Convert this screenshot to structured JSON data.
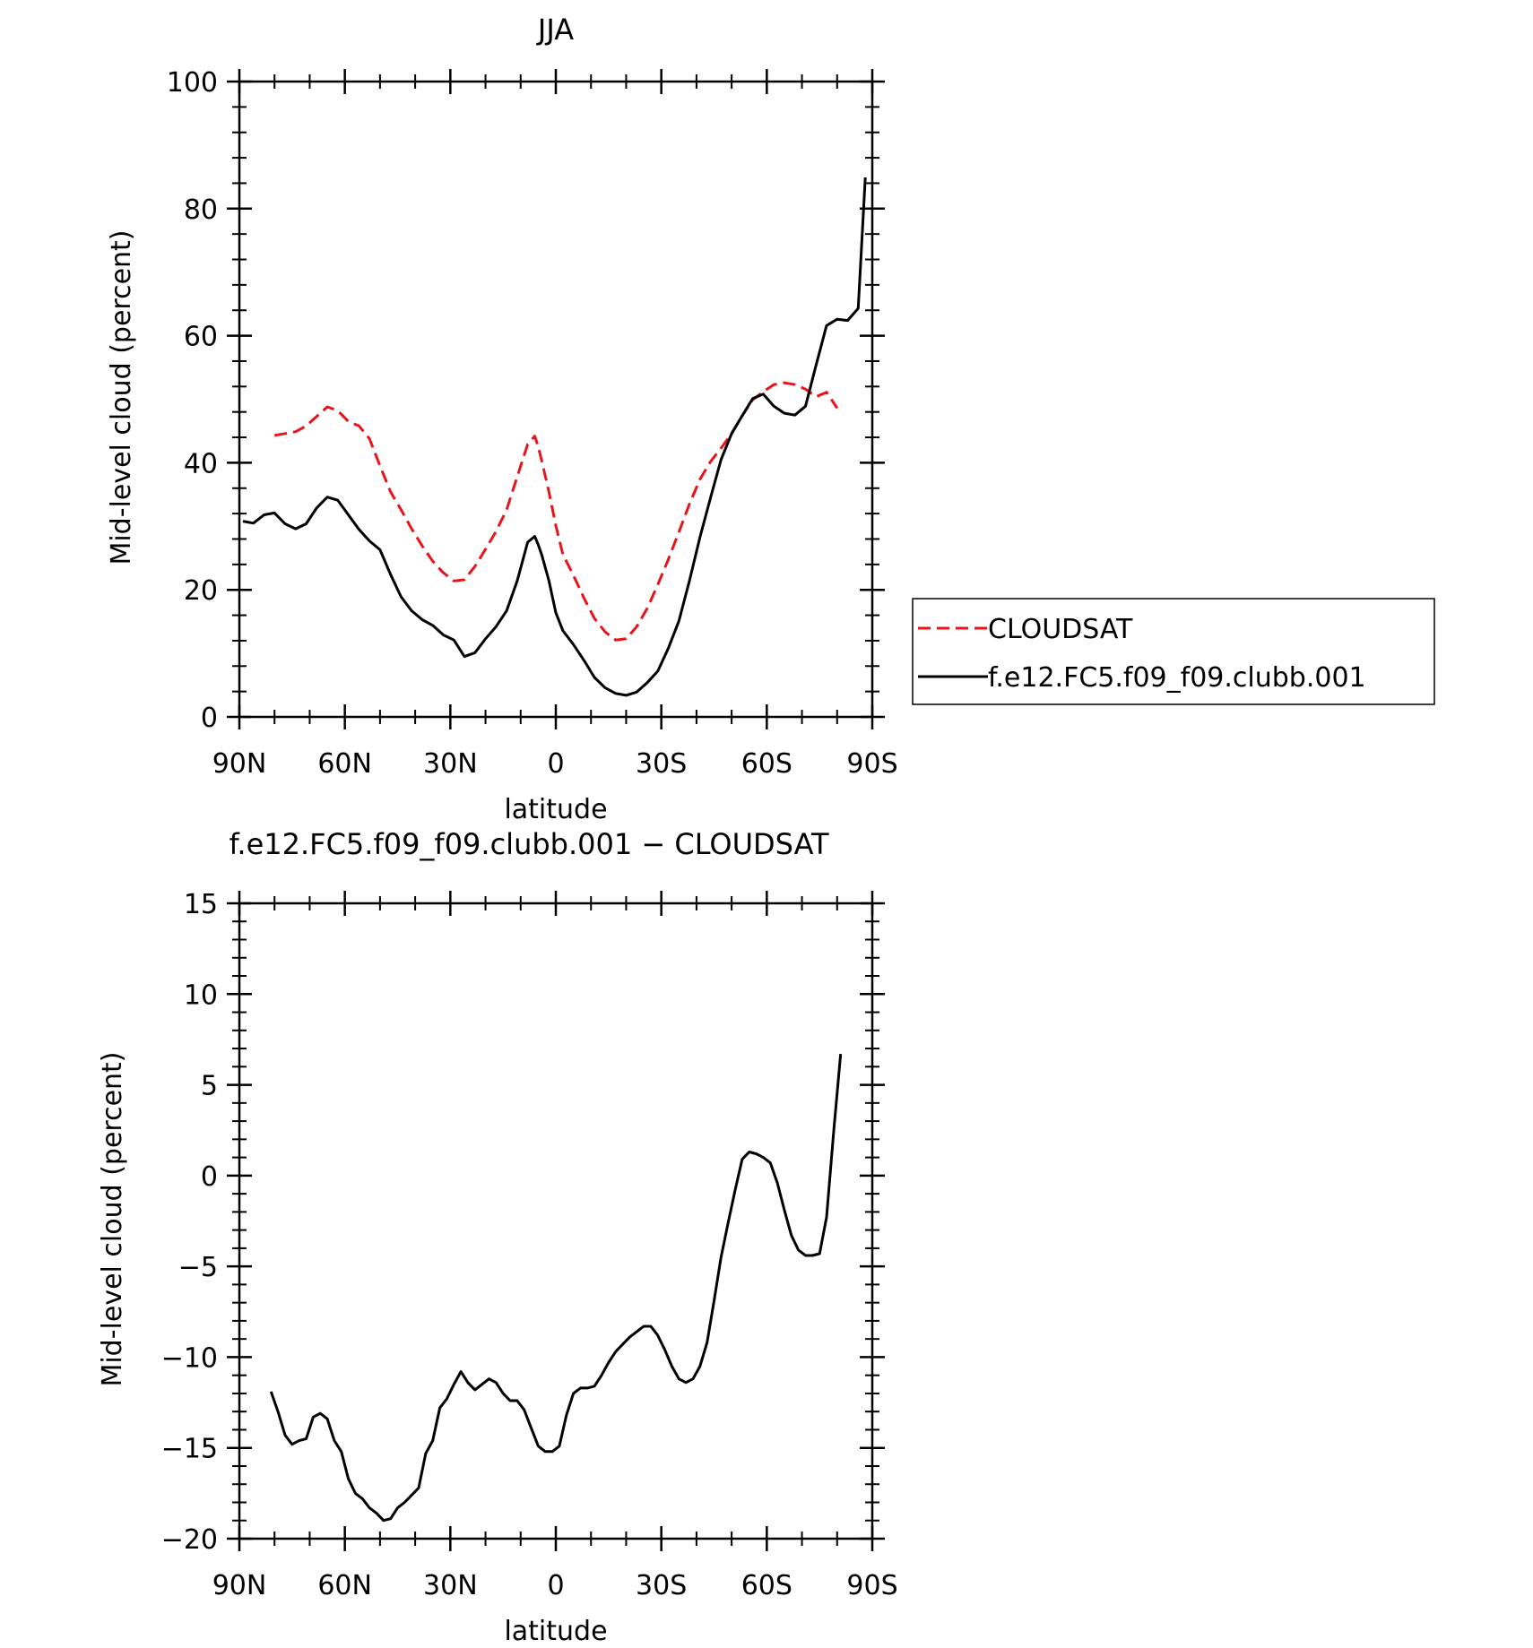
{
  "chart_data": [
    {
      "type": "line",
      "title": "JJA",
      "xlabel": "latitude",
      "ylabel": "Mid-level cloud (percent)",
      "xlim": [
        90,
        -90
      ],
      "ylim": [
        0,
        100
      ],
      "xticks": [
        {
          "value": 90,
          "label": "90N"
        },
        {
          "value": 60,
          "label": "60N"
        },
        {
          "value": 30,
          "label": "30N"
        },
        {
          "value": 0,
          "label": "0"
        },
        {
          "value": -30,
          "label": "30S"
        },
        {
          "value": -60,
          "label": "60S"
        },
        {
          "value": -90,
          "label": "90S"
        }
      ],
      "yticks": [
        {
          "value": 0,
          "label": "0"
        },
        {
          "value": 20,
          "label": "20"
        },
        {
          "value": 40,
          "label": "40"
        },
        {
          "value": 60,
          "label": "60"
        },
        {
          "value": 80,
          "label": "80"
        },
        {
          "value": 100,
          "label": "100"
        }
      ],
      "grid": false,
      "legend": {
        "position": "right"
      },
      "series": [
        {
          "name": "CLOUDSAT",
          "color": "#e8141c",
          "dash": true,
          "x": [
            80,
            77,
            74,
            71,
            68,
            65,
            62,
            59,
            56,
            53,
            50,
            47,
            44,
            41,
            38,
            35,
            32,
            29,
            26,
            23,
            20,
            17,
            14,
            11,
            8,
            6,
            5,
            4,
            2,
            0,
            -2,
            -5,
            -8,
            -11,
            -14,
            -17,
            -20,
            -23,
            -26,
            -29,
            -32,
            -35,
            -38,
            -41,
            -44,
            -47,
            -50,
            -53,
            -56,
            -59,
            -62,
            -65,
            -68,
            -71,
            -74,
            -77,
            -80
          ],
          "y": [
            44.3,
            44.6,
            44.9,
            45.8,
            47.3,
            48.8,
            48.2,
            46.5,
            45.8,
            43.8,
            39.5,
            35.4,
            32.6,
            29.6,
            26.9,
            24.5,
            22.7,
            21.4,
            21.6,
            23.7,
            26.4,
            29.2,
            32.6,
            37.8,
            42.9,
            44.2,
            42.5,
            40.3,
            35.5,
            30.1,
            25.6,
            22.3,
            18.7,
            15.5,
            13.4,
            12.1,
            12.3,
            14.2,
            17.1,
            20.8,
            24.8,
            29.1,
            33.5,
            37.4,
            40.2,
            42.3,
            44.6,
            47.4,
            49.9,
            51.2,
            52.3,
            52.6,
            52.3,
            51.6,
            50.4,
            51.1,
            48.6
          ]
        },
        {
          "name": "f.e12.FC5.f09_f09.clubb.001",
          "color": "#000000",
          "dash": false,
          "x": [
            89,
            86,
            83,
            80,
            77,
            74,
            71,
            68,
            65,
            62,
            59,
            56,
            53,
            50,
            47,
            44,
            41,
            38,
            35,
            32,
            29,
            26,
            23,
            20,
            17,
            14,
            11,
            8,
            6,
            5,
            4,
            2,
            0,
            -2,
            -5,
            -8,
            -11,
            -14,
            -17,
            -20,
            -23,
            -26,
            -29,
            -32,
            -35,
            -38,
            -41,
            -44,
            -47,
            -50,
            -53,
            -56,
            -59,
            -62,
            -65,
            -68,
            -71,
            -74,
            -77,
            -80,
            -83,
            -86,
            -88
          ],
          "y": [
            30.8,
            30.5,
            31.8,
            32.1,
            30.4,
            29.6,
            30.4,
            32.9,
            34.6,
            34.1,
            31.8,
            29.5,
            27.7,
            26.3,
            22.4,
            18.9,
            16.7,
            15.3,
            14.4,
            12.9,
            12.1,
            9.5,
            10.1,
            12.3,
            14.2,
            16.7,
            21.4,
            27.5,
            28.4,
            27.1,
            25.5,
            21.5,
            16.4,
            13.6,
            11.4,
            8.9,
            6.2,
            4.6,
            3.7,
            3.4,
            3.9,
            5.4,
            7.2,
            10.8,
            15.1,
            21.4,
            28.3,
            34.5,
            40.5,
            44.6,
            47.4,
            50.1,
            50.8,
            48.9,
            47.8,
            47.5,
            48.9,
            55.3,
            61.6,
            62.6,
            62.4,
            64.3,
            84.9
          ]
        }
      ],
      "legend_entries": [
        "CLOUDSAT",
        "f.e12.FC5.f09_f09.clubb.001"
      ]
    },
    {
      "type": "line",
      "title": "f.e12.FC5.f09_f09.clubb.001 - CLOUDSAT",
      "xlabel": "latitude",
      "ylabel": "Mid-level cloud (percent)",
      "xlim": [
        90,
        -90
      ],
      "ylim": [
        -20,
        15
      ],
      "xticks": [
        {
          "value": 90,
          "label": "90N"
        },
        {
          "value": 60,
          "label": "60N"
        },
        {
          "value": 30,
          "label": "30N"
        },
        {
          "value": 0,
          "label": "0"
        },
        {
          "value": -30,
          "label": "30S"
        },
        {
          "value": -60,
          "label": "60S"
        },
        {
          "value": -90,
          "label": "90S"
        }
      ],
      "yticks": [
        {
          "value": -20,
          "label": "-20"
        },
        {
          "value": -15,
          "label": "-15"
        },
        {
          "value": -10,
          "label": "-10"
        },
        {
          "value": -5,
          "label": "-5"
        },
        {
          "value": 0,
          "label": "0"
        },
        {
          "value": 5,
          "label": "5"
        },
        {
          "value": 10,
          "label": "10"
        },
        {
          "value": 15,
          "label": "15"
        }
      ],
      "grid": false,
      "series": [
        {
          "color": "#000000",
          "dash": false,
          "x": [
            81,
            79,
            77,
            75,
            73,
            71,
            69,
            67,
            65,
            63,
            61,
            59,
            57,
            55,
            53,
            51,
            49,
            47,
            45,
            43,
            41,
            39,
            37,
            35,
            33,
            31,
            29,
            27,
            25,
            23,
            21,
            19,
            17,
            15,
            13,
            11,
            9,
            7,
            5,
            3,
            1,
            -1,
            -3,
            -5,
            -7,
            -9,
            -11,
            -13,
            -15,
            -17,
            -19,
            -21,
            -23,
            -25,
            -27,
            -29,
            -31,
            -33,
            -35,
            -37,
            -39,
            -41,
            -43,
            -45,
            -47,
            -49,
            -51,
            -53,
            -55,
            -57,
            -59,
            -61,
            -63,
            -65,
            -67,
            -69,
            -71,
            -73,
            -75,
            -77,
            -79,
            -81
          ],
          "y": [
            -11.9,
            -13.0,
            -14.3,
            -14.8,
            -14.6,
            -14.5,
            -13.3,
            -13.1,
            -13.4,
            -14.6,
            -15.2,
            -16.7,
            -17.5,
            -17.8,
            -18.3,
            -18.6,
            -19.0,
            -18.9,
            -18.3,
            -18.0,
            -17.6,
            -17.2,
            -15.3,
            -14.6,
            -12.8,
            -12.3,
            -11.5,
            -10.8,
            -11.4,
            -11.8,
            -11.5,
            -11.2,
            -11.4,
            -12.0,
            -12.4,
            -12.4,
            -12.9,
            -13.9,
            -14.9,
            -15.2,
            -15.2,
            -14.9,
            -13.2,
            -12.0,
            -11.7,
            -11.7,
            -11.6,
            -11.0,
            -10.3,
            -9.7,
            -9.3,
            -8.9,
            -8.6,
            -8.3,
            -8.3,
            -8.8,
            -9.6,
            -10.5,
            -11.2,
            -11.4,
            -11.2,
            -10.5,
            -9.2,
            -6.9,
            -4.5,
            -2.6,
            -0.8,
            0.9,
            1.3,
            1.2,
            1.0,
            0.7,
            -0.4,
            -1.9,
            -3.3,
            -4.1,
            -4.4,
            -4.4,
            -4.3,
            -2.3,
            2.4,
            6.7
          ]
        }
      ]
    }
  ]
}
